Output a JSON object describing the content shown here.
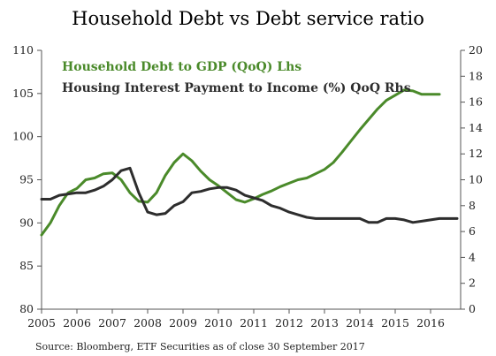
{
  "chart_data": {
    "type": "line",
    "title": "Household Debt vs Debt service ratio",
    "source": "Source: Bloomberg, ETF Securities as of close 30 September 2017",
    "x_range": [
      2005.0,
      2016.85
    ],
    "x_ticks": [
      "2005",
      "2006",
      "2007",
      "2008",
      "2009",
      "2010",
      "2011",
      "2012",
      "2013",
      "2014",
      "2015",
      "2016"
    ],
    "y_left": {
      "range": [
        80,
        110
      ],
      "ticks": [
        80,
        85,
        90,
        95,
        100,
        105,
        110
      ]
    },
    "y_right": {
      "range": [
        0,
        20
      ],
      "ticks": [
        0,
        2,
        4,
        6,
        8,
        10,
        12,
        14,
        16,
        18,
        20
      ]
    },
    "colors": {
      "debt": "#4a8a2a",
      "interest": "#2d2d2d",
      "axis": "#555555"
    },
    "series": [
      {
        "name": "Household Debt to GDP (QoQ) Lhs",
        "axis": "left",
        "color": "#4a8a2a",
        "points": [
          [
            2005.0,
            88.6
          ],
          [
            2005.25,
            90.0
          ],
          [
            2005.5,
            92.0
          ],
          [
            2005.75,
            93.5
          ],
          [
            2006.0,
            94.0
          ],
          [
            2006.25,
            95.0
          ],
          [
            2006.5,
            95.2
          ],
          [
            2006.75,
            95.7
          ],
          [
            2007.0,
            95.8
          ],
          [
            2007.25,
            95.0
          ],
          [
            2007.5,
            93.5
          ],
          [
            2007.75,
            92.5
          ],
          [
            2008.0,
            92.4
          ],
          [
            2008.25,
            93.5
          ],
          [
            2008.5,
            95.5
          ],
          [
            2008.75,
            97.0
          ],
          [
            2009.0,
            98.0
          ],
          [
            2009.25,
            97.2
          ],
          [
            2009.5,
            96.0
          ],
          [
            2009.75,
            95.0
          ],
          [
            2010.0,
            94.3
          ],
          [
            2010.25,
            93.5
          ],
          [
            2010.5,
            92.7
          ],
          [
            2010.75,
            92.4
          ],
          [
            2011.0,
            92.8
          ],
          [
            2011.25,
            93.3
          ],
          [
            2011.5,
            93.7
          ],
          [
            2011.75,
            94.2
          ],
          [
            2012.0,
            94.6
          ],
          [
            2012.25,
            95.0
          ],
          [
            2012.5,
            95.2
          ],
          [
            2012.75,
            95.7
          ],
          [
            2013.0,
            96.2
          ],
          [
            2013.25,
            97.0
          ],
          [
            2013.5,
            98.2
          ],
          [
            2013.75,
            99.5
          ],
          [
            2014.0,
            100.8
          ],
          [
            2014.25,
            102.0
          ],
          [
            2014.5,
            103.2
          ],
          [
            2014.75,
            104.2
          ],
          [
            2015.0,
            104.8
          ],
          [
            2015.25,
            105.4
          ],
          [
            2015.5,
            105.3
          ],
          [
            2015.75,
            104.9
          ],
          [
            2016.0,
            104.9
          ],
          [
            2016.25,
            104.9
          ]
        ]
      },
      {
        "name": "Housing Interest Payment to Income (%) QoQ Rhs",
        "axis": "right",
        "color": "#2d2d2d",
        "points": [
          [
            2005.0,
            8.5
          ],
          [
            2005.25,
            8.5
          ],
          [
            2005.5,
            8.8
          ],
          [
            2005.75,
            8.9
          ],
          [
            2006.0,
            9.0
          ],
          [
            2006.25,
            9.0
          ],
          [
            2006.5,
            9.2
          ],
          [
            2006.75,
            9.5
          ],
          [
            2007.0,
            10.0
          ],
          [
            2007.25,
            10.7
          ],
          [
            2007.5,
            10.9
          ],
          [
            2007.75,
            9.0
          ],
          [
            2008.0,
            7.5
          ],
          [
            2008.25,
            7.3
          ],
          [
            2008.5,
            7.4
          ],
          [
            2008.75,
            8.0
          ],
          [
            2009.0,
            8.3
          ],
          [
            2009.25,
            9.0
          ],
          [
            2009.5,
            9.1
          ],
          [
            2009.75,
            9.3
          ],
          [
            2010.0,
            9.4
          ],
          [
            2010.25,
            9.4
          ],
          [
            2010.5,
            9.2
          ],
          [
            2010.75,
            8.8
          ],
          [
            2011.0,
            8.6
          ],
          [
            2011.25,
            8.4
          ],
          [
            2011.5,
            8.0
          ],
          [
            2011.75,
            7.8
          ],
          [
            2012.0,
            7.5
          ],
          [
            2012.25,
            7.3
          ],
          [
            2012.5,
            7.1
          ],
          [
            2012.75,
            7.0
          ],
          [
            2013.0,
            7.0
          ],
          [
            2013.25,
            7.0
          ],
          [
            2013.5,
            7.0
          ],
          [
            2013.75,
            7.0
          ],
          [
            2014.0,
            7.0
          ],
          [
            2014.25,
            6.7
          ],
          [
            2014.5,
            6.7
          ],
          [
            2014.75,
            7.0
          ],
          [
            2015.0,
            7.0
          ],
          [
            2015.25,
            6.9
          ],
          [
            2015.5,
            6.7
          ],
          [
            2015.75,
            6.8
          ],
          [
            2016.0,
            6.9
          ],
          [
            2016.25,
            7.0
          ],
          [
            2016.5,
            7.0
          ],
          [
            2016.75,
            7.0
          ]
        ]
      }
    ],
    "grid": false,
    "legend_position": "top-left inside plot"
  }
}
